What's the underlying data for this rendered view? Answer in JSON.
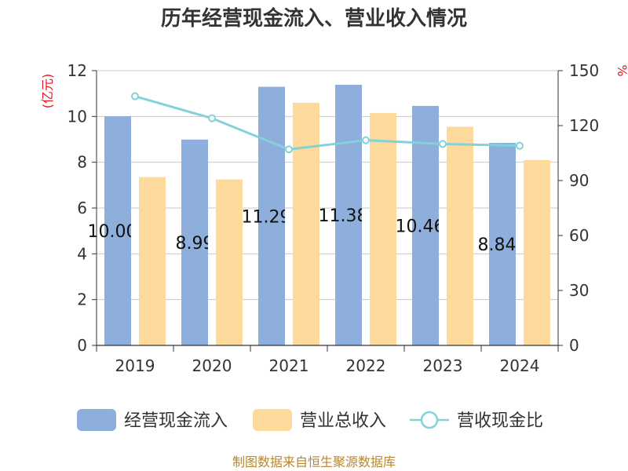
{
  "chart_data": {
    "type": "bar",
    "title": "历年经营现金流入、营业收入情况",
    "categories": [
      "2019",
      "2020",
      "2021",
      "2022",
      "2023",
      "2024"
    ],
    "y_left": {
      "unit": "(亿元)",
      "ylim": [
        0,
        12
      ],
      "ticks": [
        "0",
        "2",
        "4",
        "6",
        "8",
        "10",
        "12"
      ]
    },
    "y_right": {
      "unit": "%",
      "ylim": [
        0,
        150
      ],
      "ticks": [
        "0",
        "30",
        "60",
        "90",
        "120",
        "150"
      ]
    },
    "series": [
      {
        "name": "经营现金流入",
        "kind": "bar",
        "axis": "left",
        "color": "#8eaedb",
        "values": [
          10.006,
          8.99,
          11.296,
          11.385,
          10.461,
          8.845
        ],
        "data_labels": [
          "10.006",
          "8.99",
          "11.296",
          "11.385",
          "10.461",
          "8.845"
        ]
      },
      {
        "name": "营业总收入",
        "kind": "bar",
        "axis": "left",
        "color": "#fdd99b",
        "values": [
          7.35,
          7.25,
          10.6,
          10.15,
          9.55,
          8.1
        ]
      },
      {
        "name": "营收现金比",
        "kind": "line",
        "axis": "right",
        "color": "#84d2d9",
        "values": [
          136,
          124,
          107,
          112,
          110,
          109
        ]
      }
    ],
    "grid": true,
    "legend_position": "bottom"
  },
  "source_text": "制图数据来自恒生聚源数据库"
}
